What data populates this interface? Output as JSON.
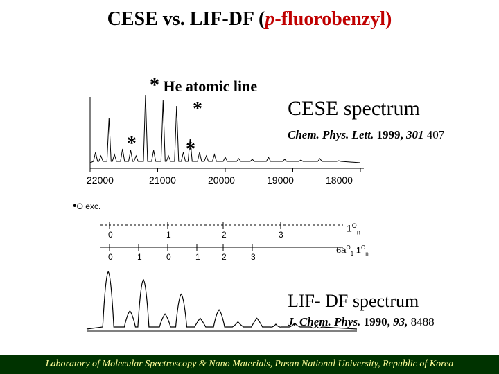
{
  "title": {
    "part1": "CESE vs. LIF-DF (",
    "part2_italic": "p",
    "part3": "-fluorobenzyl)",
    "fontsize": 28
  },
  "he_label": {
    "asterisk": "*",
    "text": "He atomic line",
    "fontsize": 22,
    "bold": true
  },
  "asterisks": {
    "a1": "*",
    "a2": "*",
    "a3": "*"
  },
  "cese": {
    "label": "CESE spectrum",
    "citation_journal": "Chem. Phys. Lett.",
    "citation_year": "1999,",
    "citation_vol": "301",
    "citation_page": "407"
  },
  "lif": {
    "label": "LIF- DF spectrum",
    "citation_journal": "J. Chem. Phys.",
    "citation_year": "1990,",
    "citation_vol": "93,",
    "citation_page": "8488"
  },
  "top_chart": {
    "xstart": 22000,
    "xend": 18000,
    "ticks": [
      "22000",
      "21000",
      "20000",
      "19000",
      "18000"
    ],
    "line_color": "#000000",
    "peaks": [
      {
        "x": 0.02,
        "h": 0.15
      },
      {
        "x": 0.04,
        "h": 0.1
      },
      {
        "x": 0.07,
        "h": 0.65
      },
      {
        "x": 0.09,
        "h": 0.12
      },
      {
        "x": 0.12,
        "h": 0.2
      },
      {
        "x": 0.15,
        "h": 0.18
      },
      {
        "x": 0.17,
        "h": 0.1
      },
      {
        "x": 0.205,
        "h": 0.98
      },
      {
        "x": 0.235,
        "h": 0.18
      },
      {
        "x": 0.27,
        "h": 0.9
      },
      {
        "x": 0.29,
        "h": 0.1
      },
      {
        "x": 0.32,
        "h": 0.82
      },
      {
        "x": 0.345,
        "h": 0.15
      },
      {
        "x": 0.37,
        "h": 0.35
      },
      {
        "x": 0.405,
        "h": 0.15
      },
      {
        "x": 0.43,
        "h": 0.1
      },
      {
        "x": 0.46,
        "h": 0.12
      },
      {
        "x": 0.5,
        "h": 0.08
      },
      {
        "x": 0.55,
        "h": 0.06
      },
      {
        "x": 0.6,
        "h": 0.05
      },
      {
        "x": 0.66,
        "h": 0.08
      },
      {
        "x": 0.72,
        "h": 0.05
      },
      {
        "x": 0.78,
        "h": 0.04
      },
      {
        "x": 0.85,
        "h": 0.06
      },
      {
        "x": 0.92,
        "h": 0.03
      }
    ]
  },
  "o_exc_label": "O exc",
  "mid_diagram": {
    "top_ticks": [
      "0",
      "1",
      "2",
      "3"
    ],
    "top_right": "1",
    "top_right2": "O",
    "top_right3": "n",
    "bot_ticks_left": [
      "0",
      "1"
    ],
    "bot_ticks_right": [
      "0",
      "1",
      "2",
      "3"
    ],
    "bot_right": "6a",
    "bot_right2": "O",
    "bot_right3": "1",
    "bot_right4": "1",
    "bot_right5": "O",
    "bot_right6": "n"
  },
  "bottom_chart": {
    "peaks": [
      {
        "x": 0.08,
        "h": 0.95
      },
      {
        "x": 0.16,
        "h": 0.3
      },
      {
        "x": 0.21,
        "h": 0.82
      },
      {
        "x": 0.29,
        "h": 0.25
      },
      {
        "x": 0.35,
        "h": 0.58
      },
      {
        "x": 0.42,
        "h": 0.18
      },
      {
        "x": 0.49,
        "h": 0.32
      },
      {
        "x": 0.56,
        "h": 0.12
      },
      {
        "x": 0.63,
        "h": 0.18
      },
      {
        "x": 0.7,
        "h": 0.08
      },
      {
        "x": 0.77,
        "h": 0.1
      },
      {
        "x": 0.85,
        "h": 0.05
      }
    ],
    "line_color": "#000000"
  },
  "footer": {
    "text": "Laboratory of Molecular Spectroscopy & Nano Materials, Pusan National University, Republic of Korea",
    "bg": "#003300",
    "color": "#ffff99"
  }
}
